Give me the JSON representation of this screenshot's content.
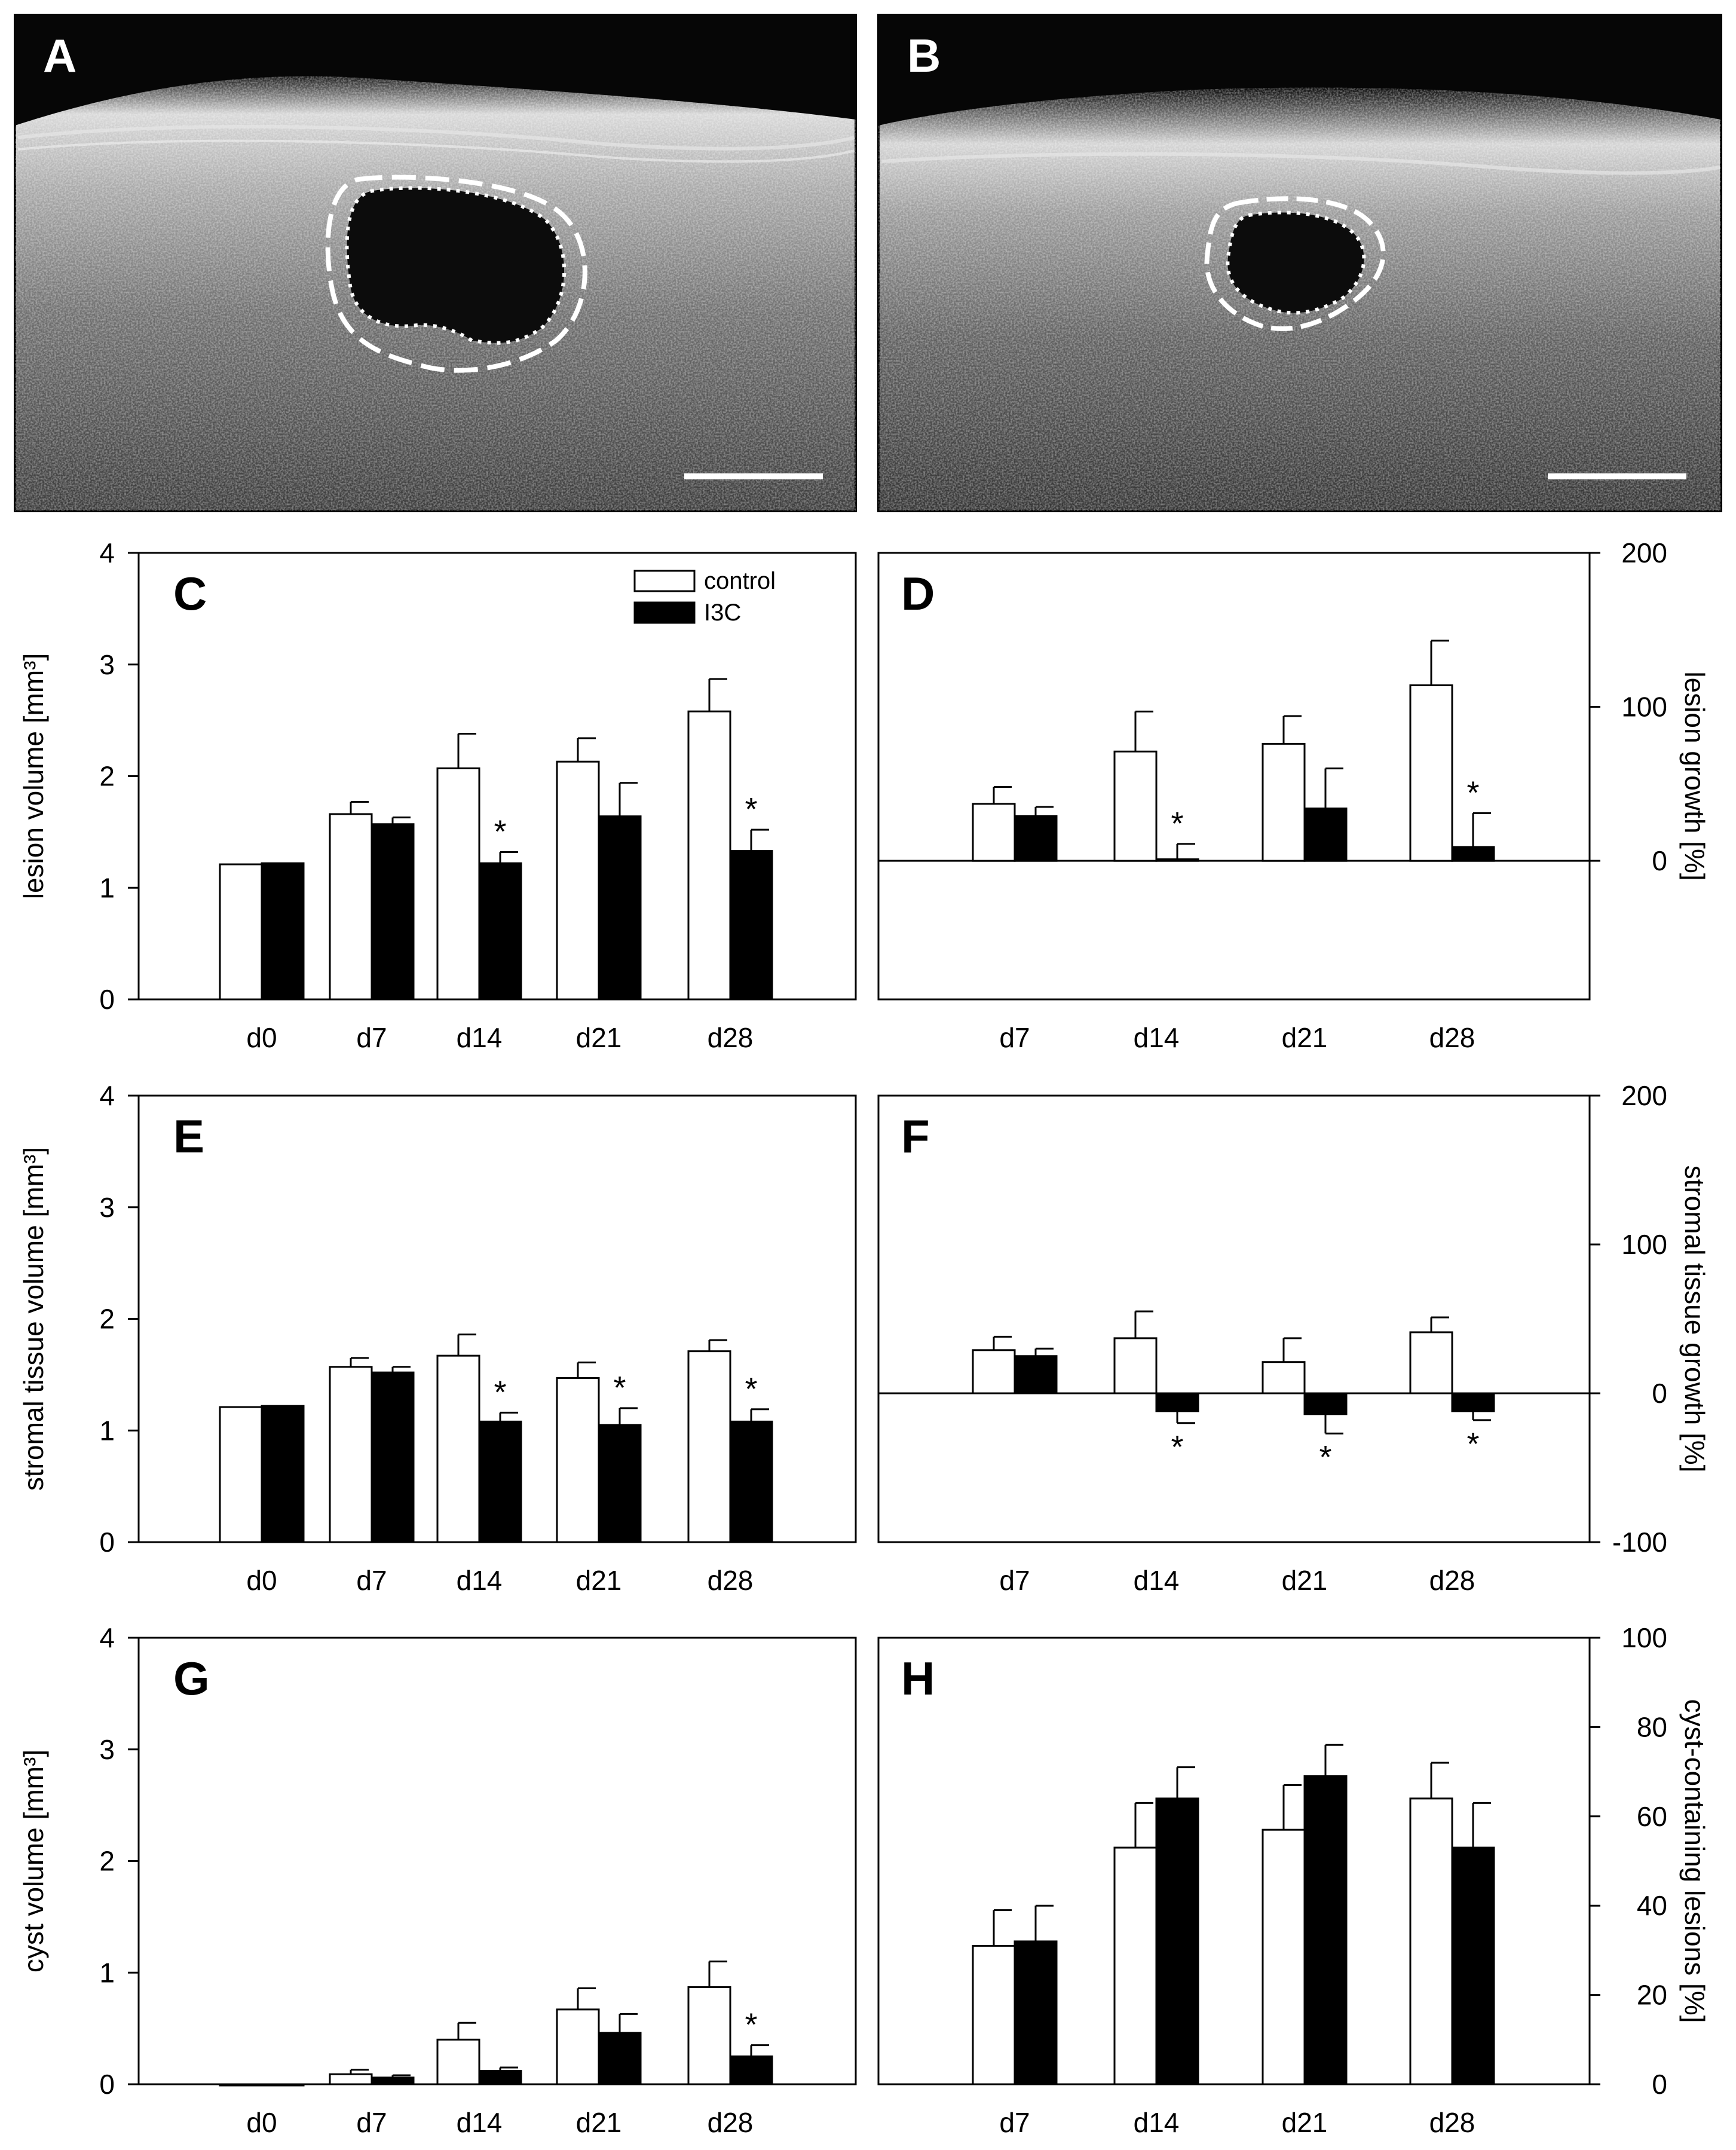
{
  "figure": {
    "images": [
      {
        "letter": "A",
        "description": "ultrasound"
      },
      {
        "letter": "B",
        "description": "ultrasound"
      }
    ],
    "legend": {
      "control": "control",
      "treated": "I3C"
    }
  },
  "colors": {
    "control": "#ffffff",
    "treated": "#000000",
    "axis": "#000000"
  },
  "chart_data": [
    {
      "panel": "C",
      "type": "bar",
      "categories": [
        "d0",
        "d7",
        "d14",
        "d21",
        "d28"
      ],
      "ylabel": "lesion volume [mm³]",
      "ylim": [
        0,
        4
      ],
      "yticks": [
        0,
        1,
        2,
        3,
        4
      ],
      "y_axis_side": "left",
      "series": [
        {
          "name": "control",
          "values": [
            1.21,
            1.66,
            2.07,
            2.13,
            2.58
          ],
          "errors": [
            0,
            0.11,
            0.31,
            0.21,
            0.29
          ]
        },
        {
          "name": "I3C",
          "values": [
            1.22,
            1.57,
            1.22,
            1.64,
            1.33
          ],
          "errors": [
            0,
            0.06,
            0.1,
            0.3,
            0.19
          ]
        }
      ],
      "significance": [
        {
          "category": "d14",
          "series": "I3C",
          "label": "*"
        },
        {
          "category": "d28",
          "series": "I3C",
          "label": "*"
        }
      ],
      "legend": true
    },
    {
      "panel": "D",
      "type": "bar",
      "categories": [
        "d7",
        "d14",
        "d21",
        "d28"
      ],
      "ylabel": "lesion growth [%]",
      "ylim": [
        -90,
        200
      ],
      "yticks": [
        0,
        100,
        200
      ],
      "y_axis_side": "right",
      "baseline": 0,
      "series": [
        {
          "name": "control",
          "values": [
            37,
            71,
            76,
            114
          ],
          "errors": [
            11,
            26,
            18,
            29
          ]
        },
        {
          "name": "I3C",
          "values": [
            29,
            1,
            34,
            9
          ],
          "errors": [
            6,
            10,
            26,
            22
          ]
        }
      ],
      "significance": [
        {
          "category": "d14",
          "series": "I3C",
          "label": "*"
        },
        {
          "category": "d28",
          "series": "I3C",
          "label": "*"
        }
      ]
    },
    {
      "panel": "E",
      "type": "bar",
      "categories": [
        "d0",
        "d7",
        "d14",
        "d21",
        "d28"
      ],
      "ylabel": "stromal tissue volume [mm³]",
      "ylim": [
        0,
        4
      ],
      "yticks": [
        0,
        1,
        2,
        3,
        4
      ],
      "y_axis_side": "left",
      "series": [
        {
          "name": "control",
          "values": [
            1.21,
            1.57,
            1.67,
            1.47,
            1.71
          ],
          "errors": [
            0,
            0.08,
            0.19,
            0.14,
            0.1
          ]
        },
        {
          "name": "I3C",
          "values": [
            1.22,
            1.52,
            1.08,
            1.05,
            1.08
          ],
          "errors": [
            0,
            0.05,
            0.08,
            0.15,
            0.11
          ]
        }
      ],
      "significance": [
        {
          "category": "d14",
          "series": "I3C",
          "label": "*"
        },
        {
          "category": "d21",
          "series": "I3C",
          "label": "*"
        },
        {
          "category": "d28",
          "series": "I3C",
          "label": "*"
        }
      ]
    },
    {
      "panel": "F",
      "type": "bar",
      "categories": [
        "d7",
        "d14",
        "d21",
        "d28"
      ],
      "ylabel": "stromal tissue growth [%]",
      "ylim": [
        -100,
        200
      ],
      "yticks": [
        -100,
        0,
        100,
        200
      ],
      "y_axis_side": "right",
      "baseline": 0,
      "series": [
        {
          "name": "control",
          "values": [
            29,
            37,
            21,
            41
          ],
          "errors": [
            9,
            18,
            16,
            10
          ]
        },
        {
          "name": "I3C",
          "values": [
            25,
            -12,
            -14,
            -12
          ],
          "errors": [
            5,
            8,
            13,
            6
          ]
        }
      ],
      "significance": [
        {
          "category": "d14",
          "series": "I3C",
          "label": "*"
        },
        {
          "category": "d21",
          "series": "I3C",
          "label": "*"
        },
        {
          "category": "d28",
          "series": "I3C",
          "label": "*"
        }
      ]
    },
    {
      "panel": "G",
      "type": "bar",
      "categories": [
        "d0",
        "d7",
        "d14",
        "d21",
        "d28"
      ],
      "ylabel": "cyst volume [mm³]",
      "ylim": [
        0,
        4
      ],
      "yticks": [
        0,
        1,
        2,
        3,
        4
      ],
      "y_axis_side": "left",
      "series": [
        {
          "name": "control",
          "values": [
            0,
            0.09,
            0.4,
            0.67,
            0.87
          ],
          "errors": [
            0,
            0.04,
            0.15,
            0.19,
            0.23
          ]
        },
        {
          "name": "I3C",
          "values": [
            0,
            0.06,
            0.12,
            0.46,
            0.25
          ],
          "errors": [
            0,
            0.02,
            0.03,
            0.17,
            0.1
          ]
        }
      ],
      "significance": [
        {
          "category": "d28",
          "series": "I3C",
          "label": "*"
        }
      ]
    },
    {
      "panel": "H",
      "type": "bar",
      "categories": [
        "d7",
        "d14",
        "d21",
        "d28"
      ],
      "ylabel": "cyst-containing lesions [%]",
      "ylim": [
        0,
        100
      ],
      "yticks": [
        0,
        20,
        40,
        60,
        80,
        100
      ],
      "y_axis_side": "right",
      "series": [
        {
          "name": "control",
          "values": [
            31,
            53,
            57,
            64
          ],
          "errors": [
            8,
            10,
            10,
            8
          ]
        },
        {
          "name": "I3C",
          "values": [
            32,
            64,
            69,
            53
          ],
          "errors": [
            8,
            7,
            7,
            10
          ]
        }
      ],
      "significance": []
    }
  ]
}
